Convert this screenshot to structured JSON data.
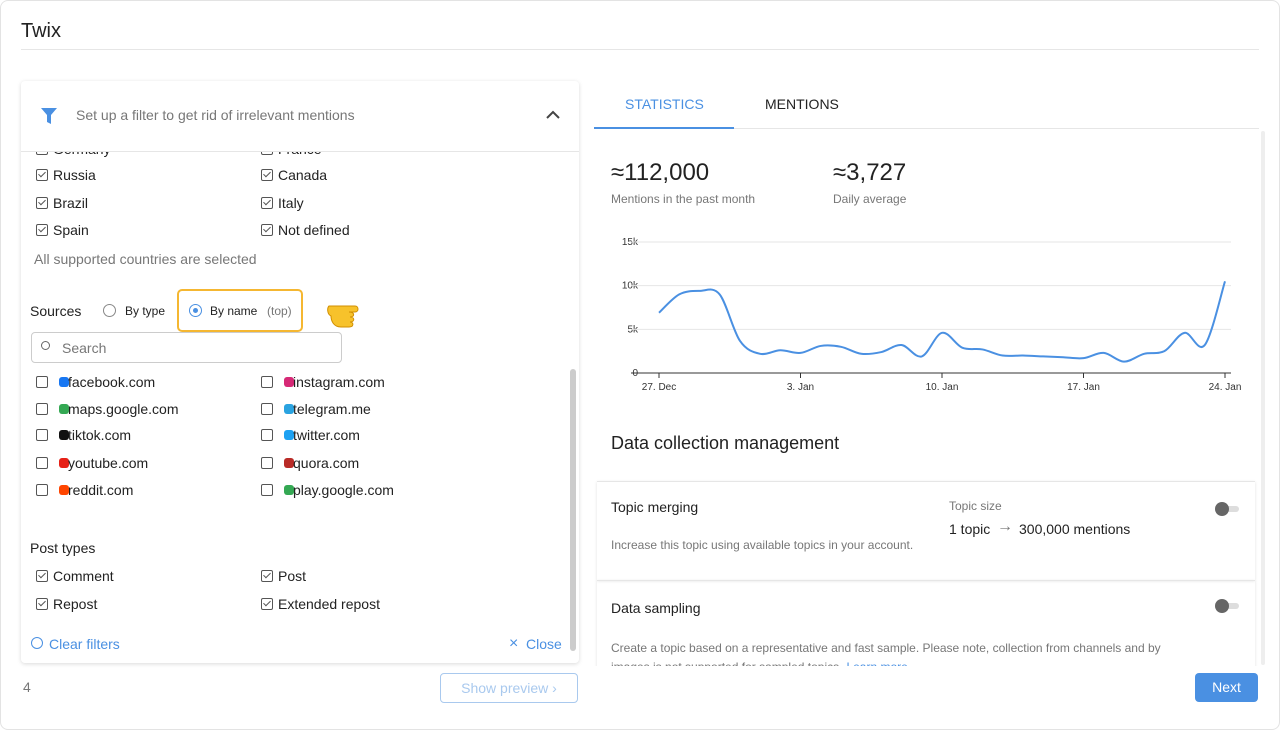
{
  "header": {
    "title": "Twix"
  },
  "filter": {
    "heading": "Set up a filter to get rid of irrelevant mentions",
    "countries": [
      [
        "Germany",
        "France"
      ],
      [
        "Russia",
        "Canada"
      ],
      [
        "Brazil",
        "Italy"
      ],
      [
        "Spain",
        "Not defined"
      ]
    ],
    "countries_note": "All supported countries are selected",
    "sources_label": "Sources",
    "by_type": "By type",
    "by_name": "By name",
    "by_name_hint": "(top)",
    "search_placeholder": "Search",
    "sources": [
      [
        "facebook.com",
        "instagram.com"
      ],
      [
        "maps.google.com",
        "telegram.me"
      ],
      [
        "tiktok.com",
        "twitter.com"
      ],
      [
        "youtube.com",
        "quora.com"
      ],
      [
        "reddit.com",
        "play.google.com"
      ]
    ],
    "post_types_label": "Post types",
    "post_types": [
      [
        "Comment",
        "Post"
      ],
      [
        "Repost",
        "Extended repost"
      ]
    ],
    "clear": "Clear filters",
    "close": "Close"
  },
  "footer": {
    "step": "4",
    "preview": "Show preview",
    "next": "Next"
  },
  "tabs": [
    "STATISTICS",
    "MENTIONS"
  ],
  "stats": [
    {
      "value": "≈112,000",
      "label": "Mentions in the past month"
    },
    {
      "value": "≈3,727",
      "label": "Daily average"
    }
  ],
  "chart_data": {
    "type": "line",
    "categories": [
      "27. Dec",
      null,
      null,
      null,
      null,
      null,
      null,
      "3. Jan",
      null,
      null,
      null,
      null,
      null,
      null,
      "10. Jan",
      null,
      null,
      null,
      null,
      null,
      null,
      "17. Jan",
      null,
      null,
      null,
      null,
      null,
      null,
      "24. Jan"
    ],
    "values": [
      6900,
      9000,
      9400,
      9000,
      3700,
      2200,
      2600,
      2300,
      3100,
      3000,
      2200,
      2400,
      3200,
      1900,
      4600,
      2900,
      2700,
      2000,
      2000,
      1900,
      1800,
      1700,
      2300,
      1300,
      2200,
      2500,
      4600,
      3200,
      10500
    ],
    "color": "#4a90e2",
    "ylim": [
      0,
      15000
    ],
    "yticks": [
      0,
      {
        "value": 5000,
        "label": "5k"
      },
      {
        "value": 10000,
        "label": "10k"
      },
      {
        "value": 15000,
        "label": "15k"
      }
    ],
    "grid": true
  },
  "management": {
    "title": "Data collection management",
    "merging": {
      "title": "Topic merging",
      "size_label": "Topic size",
      "from": "1 topic",
      "to": "300,000 mentions",
      "description": "Increase this topic using available topics in your account."
    },
    "sampling": {
      "title": "Data sampling",
      "description": "Create a topic based on a representative and fast sample. Please note, collection from channels and by images is not supported for sampled topics.",
      "link": "Learn more"
    }
  }
}
